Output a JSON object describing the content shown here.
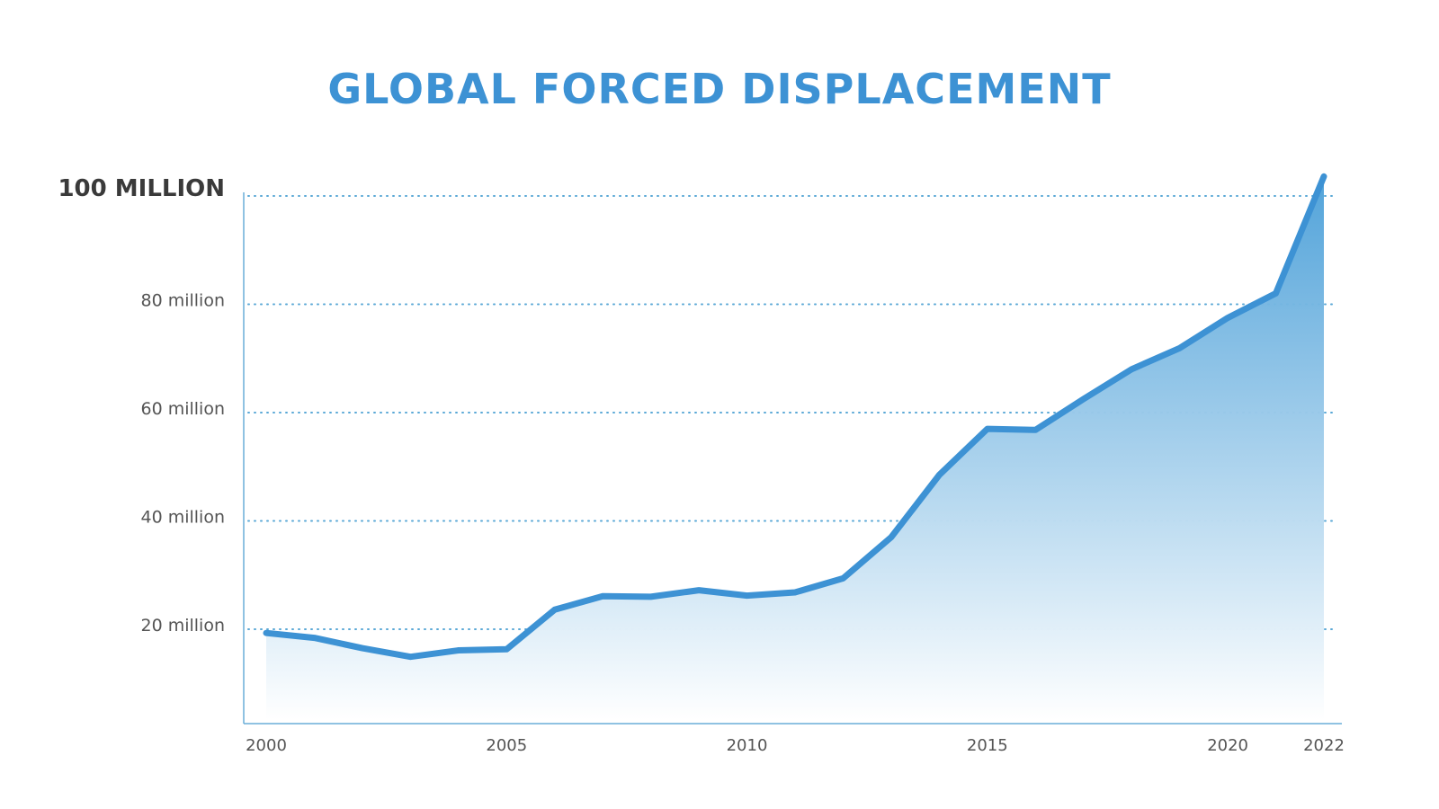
{
  "chart_data": {
    "type": "area",
    "title": "GLOBAL FORCED DISPLACEMENT",
    "xlabel": "",
    "ylabel": "",
    "x": [
      2000,
      2001,
      2002,
      2003,
      2004,
      2005,
      2006,
      2007,
      2008,
      2009,
      2010,
      2011,
      2012,
      2013,
      2014,
      2015,
      2016,
      2017,
      2018,
      2019,
      2020,
      2021,
      2022
    ],
    "series": [
      {
        "values": [
          19.3,
          18.4,
          16.5,
          14.9,
          16.1,
          16.3,
          23.6,
          26.1,
          26.0,
          27.2,
          26.2,
          26.8,
          29.4,
          37.0,
          48.5,
          57.0,
          56.8,
          62.5,
          68.0,
          71.9,
          77.5,
          82.0,
          103.6
        ]
      }
    ],
    "xlim": [
      2000,
      2022
    ],
    "ylim": [
      0,
      100
    ],
    "y_ticks": [
      {
        "value": 20,
        "label": "20 million"
      },
      {
        "value": 40,
        "label": "40 million"
      },
      {
        "value": 60,
        "label": "60 million"
      },
      {
        "value": 80,
        "label": "80 million"
      },
      {
        "value": 100,
        "label": "100 MILLION"
      }
    ],
    "x_ticks": [
      {
        "value": 2000,
        "label": "2000"
      },
      {
        "value": 2005,
        "label": "2005"
      },
      {
        "value": 2010,
        "label": "2010"
      },
      {
        "value": 2015,
        "label": "2015"
      },
      {
        "value": 2020,
        "label": "2020"
      },
      {
        "value": 2022,
        "label": "2022"
      }
    ],
    "grid": "horizontal dotted",
    "legend": "none",
    "colors": {
      "line": "#3d92d4",
      "fill_top": "#4a9fd8",
      "fill_bottom": "#ffffff",
      "grid": "#5aa8d6",
      "axis": "#6aaed9",
      "title": "#3d92d4"
    }
  }
}
